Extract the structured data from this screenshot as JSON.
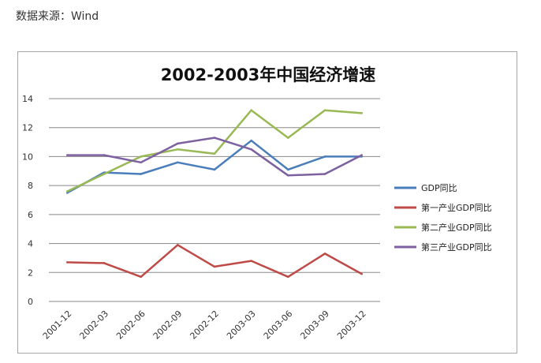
{
  "source_text": "数据来源：Wind",
  "chart_data": {
    "type": "line",
    "title": "2002-2003年中国经济增速",
    "categories": [
      "2001-12",
      "2002-03",
      "2002-06",
      "2002-09",
      "2002-12",
      "2003-03",
      "2003-06",
      "2003-09",
      "2003-12"
    ],
    "ylim": [
      0,
      14
    ],
    "yticks": [
      0,
      2,
      4,
      6,
      8,
      10,
      12,
      14
    ],
    "grid": true,
    "legend_position": "right",
    "series": [
      {
        "name": "GDP同比",
        "color": "#4a7ebb",
        "values": [
          7.5,
          8.9,
          8.8,
          9.6,
          9.1,
          11.1,
          9.1,
          10.0,
          10.0
        ]
      },
      {
        "name": "第一产业GDP同比",
        "color": "#be4b48",
        "values": [
          2.7,
          2.65,
          1.7,
          3.9,
          2.4,
          2.8,
          1.7,
          3.3,
          1.9
        ]
      },
      {
        "name": "第二产业GDP同比",
        "color": "#98b954",
        "values": [
          7.6,
          8.8,
          10.0,
          10.5,
          10.2,
          13.2,
          11.3,
          13.2,
          13.0
        ]
      },
      {
        "name": "第三产业GDP同比",
        "color": "#7d60a0",
        "values": [
          10.1,
          10.1,
          9.6,
          10.9,
          11.3,
          10.5,
          8.7,
          8.8,
          10.1
        ]
      }
    ]
  }
}
